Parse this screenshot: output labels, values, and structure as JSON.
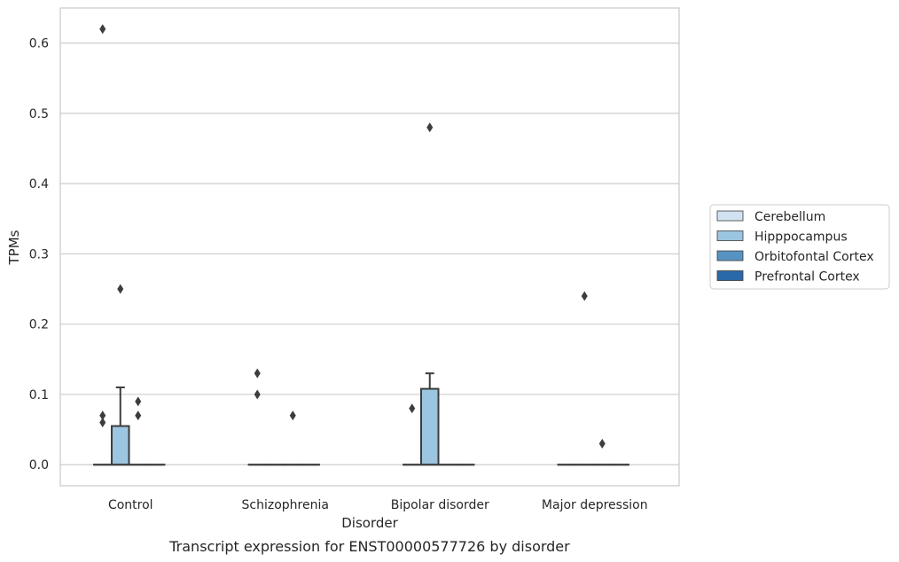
{
  "chart_data": {
    "type": "box",
    "title": "",
    "caption": "Transcript expression for ENST00000577726 by disorder",
    "xlabel": "Disorder",
    "ylabel": "TPMs",
    "ylim": [
      -0.03,
      0.65
    ],
    "yticks": [
      "0.0",
      "0.1",
      "0.2",
      "0.3",
      "0.4",
      "0.5",
      "0.6"
    ],
    "ytick_values": [
      0.0,
      0.1,
      0.2,
      0.3,
      0.4,
      0.5,
      0.6
    ],
    "grid": true,
    "legend_position": "right",
    "categories": [
      "Control",
      "Schizophrenia",
      "Bipolar disorder",
      "Major depression"
    ],
    "series": [
      {
        "name": "Cerebellum",
        "color": "#d1e2f2",
        "boxes": [
          {
            "q1": 0,
            "median": 0,
            "q3": 0,
            "whisker_low": 0,
            "whisker_high": 0,
            "outliers": [
              0.06,
              0.07,
              0.62
            ]
          },
          {
            "q1": 0,
            "median": 0,
            "q3": 0,
            "whisker_low": 0,
            "whisker_high": 0,
            "outliers": [
              0.1,
              0.13
            ]
          },
          {
            "q1": 0,
            "median": 0,
            "q3": 0,
            "whisker_low": 0,
            "whisker_high": 0,
            "outliers": [
              0.08
            ]
          },
          {
            "q1": 0,
            "median": 0,
            "q3": 0,
            "whisker_low": 0,
            "whisker_high": 0,
            "outliers": []
          }
        ]
      },
      {
        "name": "Hipppocampus",
        "color": "#9bc5e0",
        "boxes": [
          {
            "q1": 0,
            "median": 0,
            "q3": 0.055,
            "whisker_low": 0,
            "whisker_high": 0.11,
            "outliers": [
              0.25
            ]
          },
          {
            "q1": 0,
            "median": 0,
            "q3": 0,
            "whisker_low": 0,
            "whisker_high": 0,
            "outliers": []
          },
          {
            "q1": 0,
            "median": 0,
            "q3": 0.108,
            "whisker_low": 0,
            "whisker_high": 0.13,
            "outliers": [
              0.48
            ]
          },
          {
            "q1": 0,
            "median": 0,
            "q3": 0,
            "whisker_low": 0,
            "whisker_high": 0,
            "outliers": [
              0.24
            ]
          }
        ]
      },
      {
        "name": "Orbitofontal Cortex",
        "color": "#5693c1",
        "boxes": [
          {
            "q1": 0,
            "median": 0,
            "q3": 0,
            "whisker_low": 0,
            "whisker_high": 0,
            "outliers": [
              0.07,
              0.09
            ]
          },
          {
            "q1": 0,
            "median": 0,
            "q3": 0,
            "whisker_low": 0,
            "whisker_high": 0,
            "outliers": [
              0.07
            ]
          },
          {
            "q1": 0,
            "median": 0,
            "q3": 0,
            "whisker_low": 0,
            "whisker_high": 0,
            "outliers": []
          },
          {
            "q1": 0,
            "median": 0,
            "q3": 0,
            "whisker_low": 0,
            "whisker_high": 0,
            "outliers": [
              0.03
            ]
          }
        ]
      },
      {
        "name": "Prefrontal Cortex",
        "color": "#2a69a8",
        "boxes": [
          {
            "q1": 0,
            "median": 0,
            "q3": 0,
            "whisker_low": 0,
            "whisker_high": 0,
            "outliers": []
          },
          {
            "q1": 0,
            "median": 0,
            "q3": 0,
            "whisker_low": 0,
            "whisker_high": 0,
            "outliers": []
          },
          {
            "q1": 0,
            "median": 0,
            "q3": 0,
            "whisker_low": 0,
            "whisker_high": 0,
            "outliers": []
          },
          {
            "q1": 0,
            "median": 0,
            "q3": 0,
            "whisker_low": 0,
            "whisker_high": 0,
            "outliers": []
          }
        ]
      }
    ]
  }
}
